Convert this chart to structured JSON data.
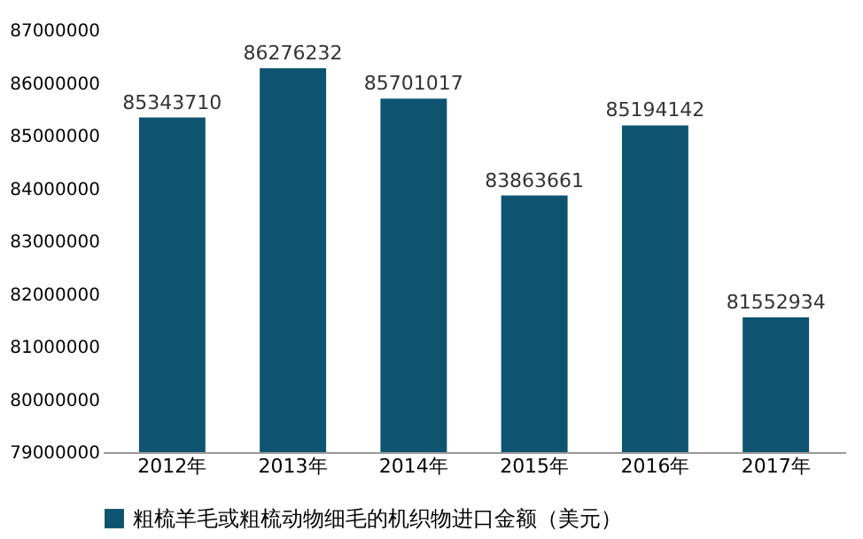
{
  "chart_data": {
    "type": "bar",
    "categories": [
      "2012年",
      "2013年",
      "2014年",
      "2015年",
      "2016年",
      "2017年"
    ],
    "series": [
      {
        "name": "粗梳羊毛或粗梳动物细毛的机织物进口金额（美元）",
        "color": "#0e5470",
        "values": [
          85343710,
          86276232,
          85701017,
          83863661,
          85194142,
          81552934
        ]
      }
    ],
    "ylim": [
      79000000,
      87000000
    ],
    "yticks": [
      79000000,
      80000000,
      81000000,
      82000000,
      83000000,
      84000000,
      85000000,
      86000000,
      87000000
    ],
    "data_labels": true,
    "legend": "bottom",
    "grid": false
  }
}
